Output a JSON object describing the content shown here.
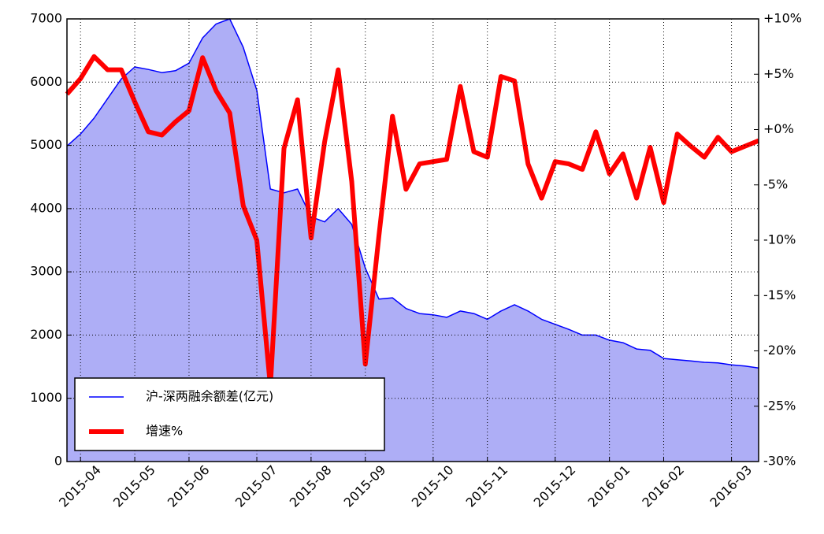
{
  "chart_data": {
    "type": "line",
    "categories": [
      null,
      "2015-04",
      null,
      null,
      null,
      "2015-05",
      null,
      null,
      null,
      "2015-06",
      null,
      null,
      null,
      null,
      "2015-07",
      null,
      null,
      null,
      "2015-08",
      null,
      null,
      null,
      "2015-09",
      null,
      null,
      null,
      null,
      "2015-10",
      null,
      null,
      null,
      "2015-11",
      null,
      null,
      null,
      null,
      "2015-12",
      null,
      null,
      null,
      "2016-01",
      null,
      null,
      null,
      "2016-02",
      null,
      null,
      null,
      null,
      "2016-03",
      null,
      null
    ],
    "series": [
      {
        "name": "沪-深两融余额差(亿元)",
        "color": "#0000ff",
        "fill": "#aeaef6",
        "area": true,
        "values": [
          4990,
          5180,
          5430,
          5740,
          6050,
          6240,
          6200,
          6150,
          6180,
          6300,
          6700,
          6920,
          7000,
          6550,
          5870,
          4310,
          4250,
          4310,
          3870,
          3790,
          4000,
          3750,
          3060,
          2570,
          2590,
          2420,
          2340,
          2320,
          2280,
          2380,
          2340,
          2250,
          2380,
          2480,
          2380,
          2250,
          2170,
          2090,
          2000,
          2000,
          1920,
          1880,
          1780,
          1760,
          1630,
          1610,
          1590,
          1570,
          1560,
          1530,
          1510,
          1480
        ]
      },
      {
        "name": "增速%",
        "color": "#ff0000",
        "axis": "y2",
        "values": [
          3.2,
          4.6,
          6.6,
          5.4,
          5.4,
          2.5,
          -0.2,
          -0.5,
          0.7,
          1.7,
          6.5,
          3.5,
          1.5,
          -6.9,
          -10.0,
          -23.2,
          -1.7,
          2.7,
          -9.8,
          -1.1,
          5.4,
          -4.7,
          -21.2,
          -9.6,
          1.2,
          -5.4,
          -3.1,
          -2.9,
          -2.7,
          3.9,
          -2.0,
          -2.5,
          4.8,
          4.4,
          -3.1,
          -6.2,
          -2.9,
          -3.1,
          -3.6,
          -0.2,
          -4.0,
          -2.2,
          -6.2,
          -1.6,
          -6.6,
          -0.4,
          -1.5,
          -2.5,
          -0.7,
          -2.0,
          -1.5,
          -1.0
        ]
      }
    ],
    "ylim": [
      0,
      7000
    ],
    "yticks": [
      0,
      1000,
      2000,
      3000,
      4000,
      5000,
      6000,
      7000
    ],
    "y2lim": [
      -30,
      10
    ],
    "y2ticks": [
      {
        "value": -30,
        "label": "-30%"
      },
      {
        "value": -25,
        "label": "-25%"
      },
      {
        "value": -20,
        "label": "-20%"
      },
      {
        "value": -15,
        "label": "-15%"
      },
      {
        "value": -10,
        "label": "-10%"
      },
      {
        "value": -5,
        "label": "-5%"
      },
      {
        "value": 0,
        "label": "+0%"
      },
      {
        "value": 5,
        "label": "+5%"
      },
      {
        "value": 10,
        "label": "+10%"
      }
    ],
    "grid": true,
    "legend": "lower left"
  }
}
